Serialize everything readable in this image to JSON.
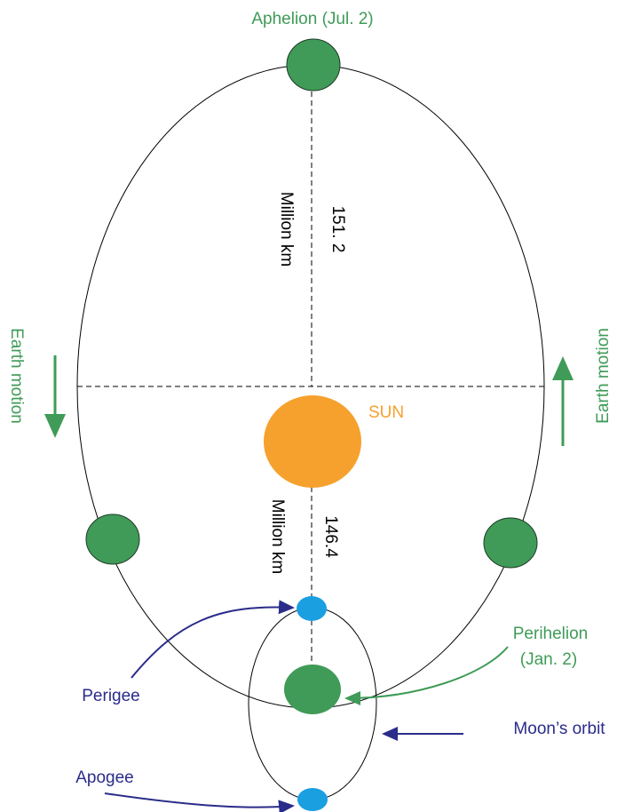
{
  "title": "Aphelion (Jul. 2)",
  "aphelion_distance": {
    "value": "151. 2",
    "unit": "Million km"
  },
  "perihelion_distance": {
    "value": "146.4",
    "unit": "Million km"
  },
  "sun": "SUN",
  "earth_motion_left": "Earth motion",
  "earth_motion_right": "Earth motion",
  "perihelion": [
    "Perihelion",
    "(Jan. 2)"
  ],
  "perigee": "Perigee",
  "apogee": "Apogee",
  "moon_orbit": "Moon’s orbit"
}
